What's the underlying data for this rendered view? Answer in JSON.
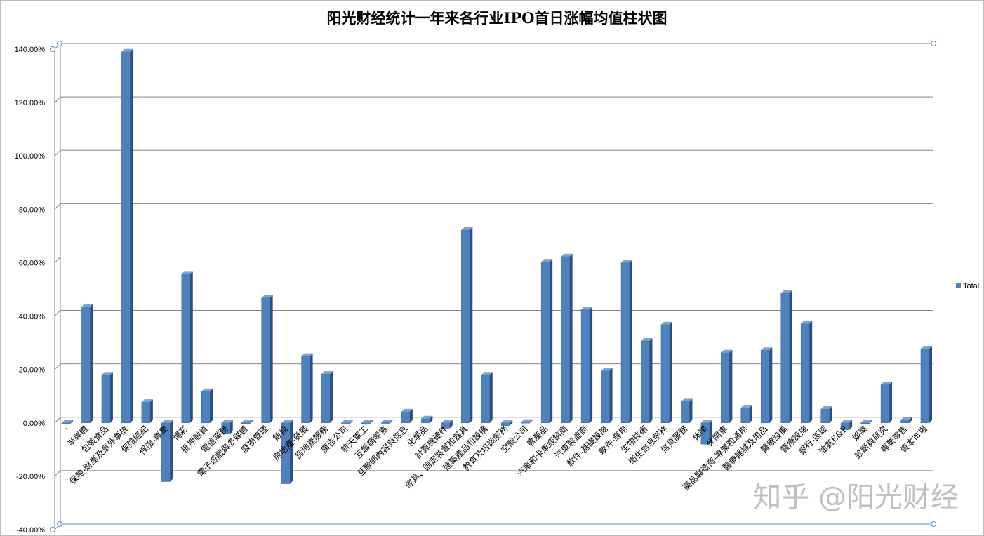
{
  "chart_data": {
    "type": "bar",
    "title": "阳光财经统计一年来各行业IPO首日涨幅均值柱状图",
    "xlabel": "",
    "ylabel": "",
    "ylim": [
      -0.4,
      1.4
    ],
    "y_ticks": [
      -0.4,
      -0.2,
      0,
      0.2,
      0.4,
      0.6,
      0.8,
      1.0,
      1.2,
      1.4
    ],
    "y_tick_labels": [
      "-40.00%",
      "-20.00%",
      "0.00%",
      "20.00%",
      "40.00%",
      "60.00%",
      "80.00%",
      "100.00%",
      "120.00%",
      "140.00%"
    ],
    "grid": true,
    "legend_position": "right",
    "categories": [
      "-",
      "半導體",
      "包裝食品",
      "保險-財產及意外事故",
      "保險經紀",
      "保險-專業",
      "博彩",
      "抵押融資",
      "電信業務",
      "電子遊戲與多媒體",
      "廢物管理",
      "飯館",
      "房地產-發展",
      "房地產服務",
      "廣告公司",
      "航天軍工",
      "互聯網零售",
      "互聯網內容與信息",
      "化學品",
      "計算機硬件",
      "傢具、固定裝置和器具",
      "建築產品和設備",
      "教育及培訓服務",
      "空殼公司",
      "農產品",
      "汽車和卡車經銷商",
      "汽車製造商",
      "軟件-基礎設施",
      "軟件-應用",
      "生物技術",
      "衛生信息服務",
      "信貸服務",
      "休閑",
      "休閑車",
      "藥品製造商-專業和通用",
      "醫療器械及用品",
      "醫療設備",
      "醫療設施",
      "銀行-區域",
      "油氣E&P",
      "娛樂",
      "診斷與研究",
      "專業零售",
      "資本市場"
    ],
    "series": [
      {
        "name": "Total",
        "color": "#4f81bd",
        "values": [
          0.0,
          0.435,
          0.18,
          1.39,
          0.078,
          -0.22,
          0.558,
          0.118,
          -0.042,
          0.001,
          0.468,
          -0.228,
          0.25,
          0.183,
          0.0,
          0.0,
          0.002,
          0.042,
          0.016,
          -0.02,
          0.722,
          0.18,
          -0.01,
          0.003,
          0.603,
          0.623,
          0.424,
          0.195,
          0.6,
          0.307,
          0.368,
          0.08,
          -0.08,
          0.263,
          0.057,
          0.272,
          0.486,
          0.371,
          0.052,
          -0.026,
          0.001,
          0.143,
          0.012,
          0.278
        ]
      }
    ]
  },
  "watermark": "知乎 @阳光财经"
}
